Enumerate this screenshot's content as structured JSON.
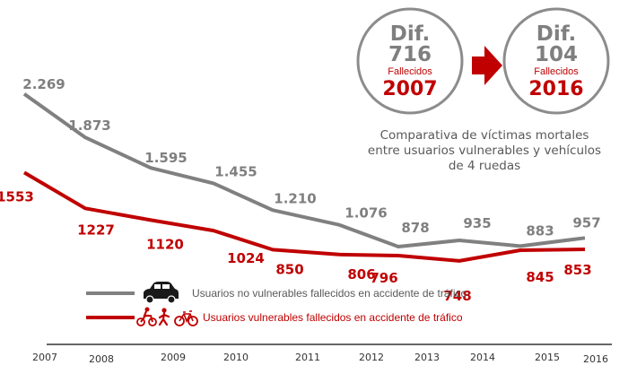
{
  "chart_data": {
    "type": "line",
    "categories": [
      "2007",
      "2008",
      "2009",
      "2010",
      "2011",
      "2012",
      "2013",
      "2014",
      "2015",
      "2016"
    ],
    "series": [
      {
        "name": "Usuarios no vulnerables fallecidos en accidente de tráfico",
        "color": "#808080",
        "values": [
          2269,
          1873,
          1595,
          1455,
          1210,
          1076,
          878,
          935,
          883,
          957
        ],
        "labels": [
          "2.269",
          "1.873",
          "1.595",
          "1.455",
          "1.210",
          "1.076",
          "878",
          "935",
          "883",
          "957"
        ]
      },
      {
        "name": "Usuarios vulnerables fallecidos en accidente de tráfico",
        "color": "#c00000",
        "values": [
          1553,
          1227,
          1120,
          1024,
          850,
          806,
          796,
          748,
          845,
          853
        ],
        "labels": [
          "1553",
          "1227",
          "1120",
          "1024",
          "850",
          "806",
          "796",
          "748",
          "845",
          "853"
        ]
      }
    ],
    "title": "",
    "xlabel": "",
    "ylabel": "",
    "grid": false,
    "legend_position": "bottom"
  },
  "callouts": [
    {
      "dif_label": "Dif.",
      "dif_value": "716",
      "sub_label": "Fallecidos",
      "year": "2007"
    },
    {
      "dif_label": "Dif.",
      "dif_value": "104",
      "sub_label": "Fallecidos",
      "year": "2016"
    }
  ],
  "caption_lines": [
    "Comparativa de víctimas mortales",
    "entre usuarios vulnerables y vehículos",
    "de 4 ruedas"
  ],
  "legend_icons": {
    "gray": "car-icon",
    "red": [
      "motorcycle-icon",
      "pedestrian-icon",
      "bicycle-icon"
    ]
  }
}
